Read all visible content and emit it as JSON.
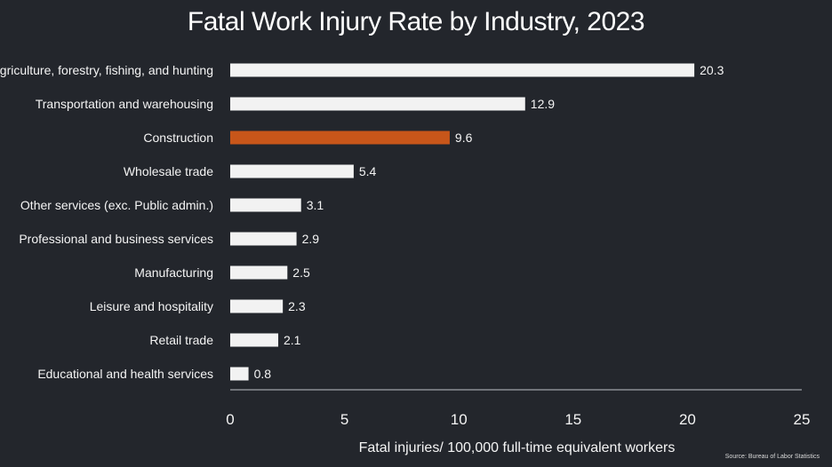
{
  "chart_data": {
    "type": "bar",
    "orientation": "horizontal",
    "title": "Fatal Work Injury Rate by Industry, 2023",
    "xlabel": "Fatal injuries/ 100,000 full-time equivalent workers",
    "ylabel": "",
    "xlim": [
      0,
      25
    ],
    "xticks": [
      0,
      5,
      10,
      15,
      20,
      25
    ],
    "grid": false,
    "categories": [
      "Agriculture, forestry, fishing, and hunting",
      "Transportation and warehousing",
      "Construction",
      "Wholesale trade",
      "Other services (exc. Public admin.)",
      "Professional and business services",
      "Manufacturing",
      "Leisure and hospitality",
      "Retail trade",
      "Educational and health services"
    ],
    "values": [
      20.3,
      12.9,
      9.6,
      5.4,
      3.1,
      2.9,
      2.5,
      2.3,
      2.1,
      0.8
    ],
    "value_labels": [
      "20.3",
      "12.9",
      "9.6",
      "5.4",
      "3.1",
      "2.9",
      "2.5",
      "2.3",
      "2.1",
      "0.8"
    ],
    "highlight_category": "Construction",
    "source": "Source: Bureau of Labor Statistics"
  },
  "colors": {
    "background": "#23262c",
    "bar": "#f2f2f2",
    "highlight": "#c8561a",
    "text": "#f4f4f4",
    "axis": "#bfc3c9"
  }
}
